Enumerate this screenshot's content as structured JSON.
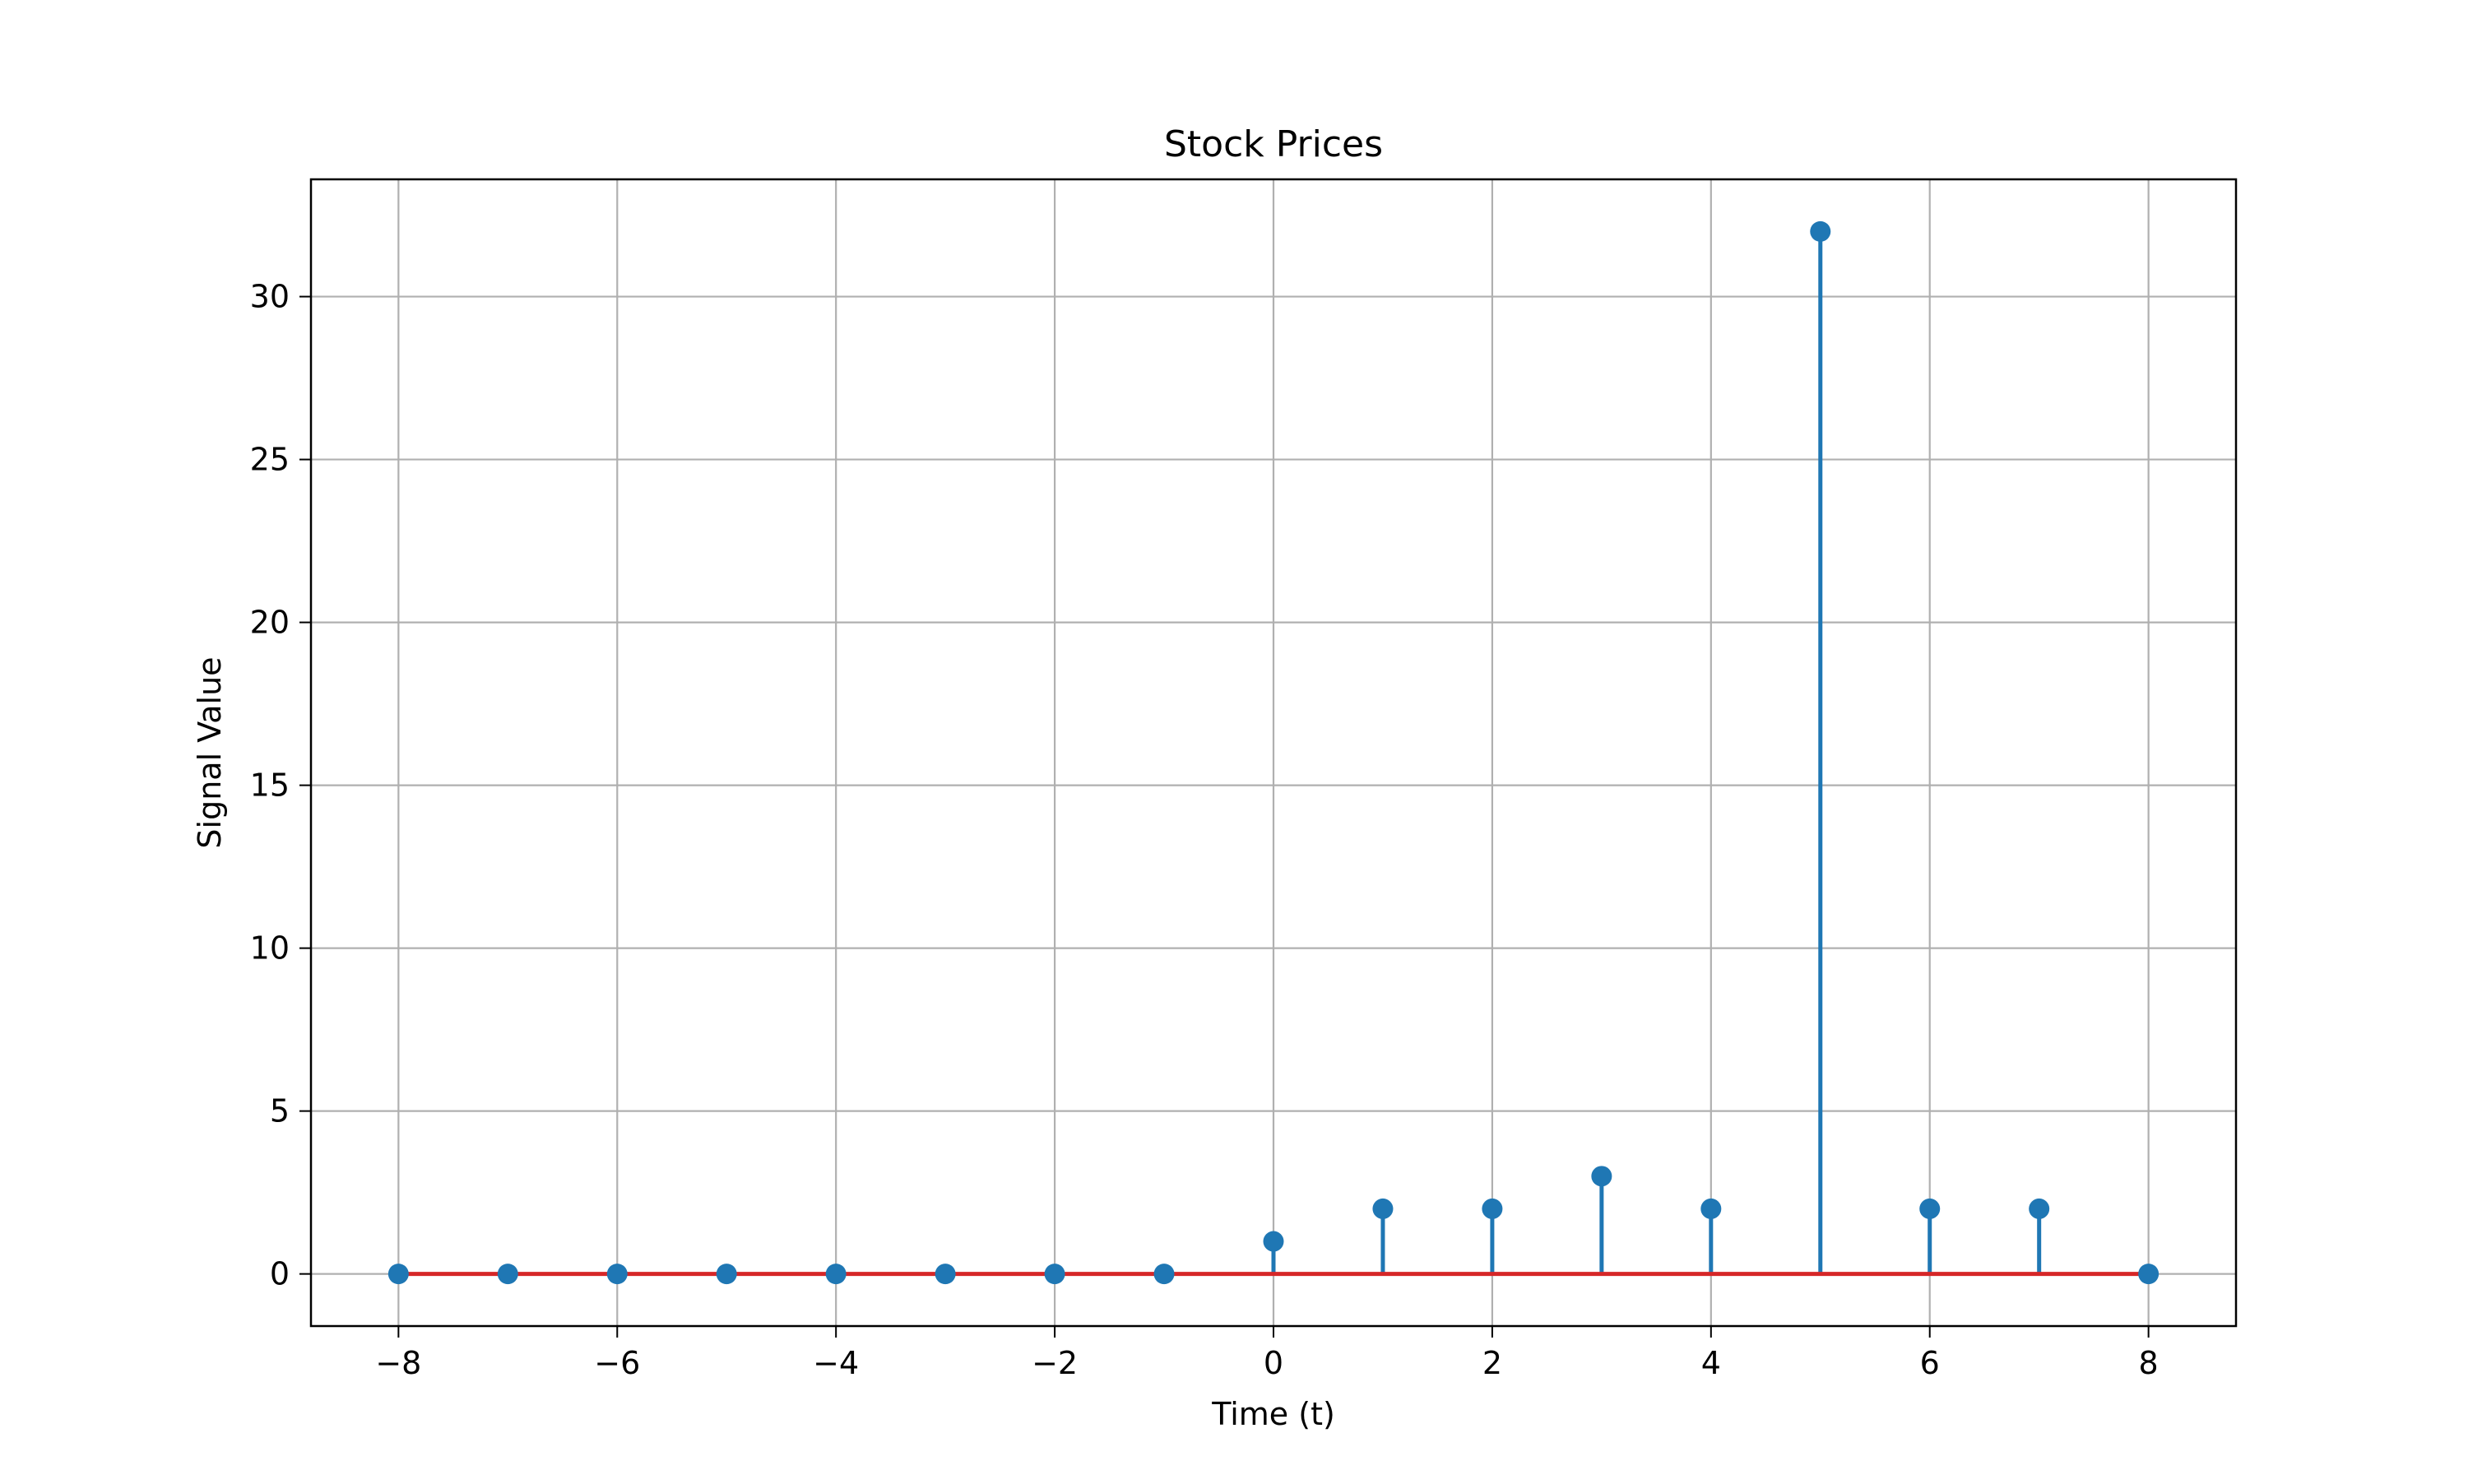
{
  "chart_data": {
    "type": "stem",
    "title": "Stock Prices",
    "xlabel": "Time (t)",
    "ylabel": "Signal Value",
    "x": [
      -8,
      -7,
      -6,
      -5,
      -4,
      -3,
      -2,
      -1,
      0,
      1,
      2,
      3,
      4,
      5,
      6,
      7,
      8
    ],
    "values": [
      0,
      0,
      0,
      0,
      0,
      0,
      0,
      0,
      1,
      2,
      2,
      3,
      2,
      32,
      2,
      2,
      0
    ],
    "xlim": [
      -8.8,
      8.8
    ],
    "ylim": [
      -1.6,
      33.6
    ],
    "xticks": [
      -8,
      -6,
      -4,
      -2,
      0,
      2,
      4,
      6,
      8
    ],
    "xtick_labels": [
      "−8",
      "−6",
      "−4",
      "−2",
      "0",
      "2",
      "4",
      "6",
      "8"
    ],
    "yticks": [
      0,
      5,
      10,
      15,
      20,
      25,
      30
    ],
    "ytick_labels": [
      "0",
      "5",
      "10",
      "15",
      "20",
      "25",
      "30"
    ],
    "grid": true,
    "baseline": 0,
    "colors": {
      "stem": "#1f77b4",
      "marker": "#1f77b4",
      "baseline": "#d62728",
      "grid": "#b0b0b0"
    }
  }
}
